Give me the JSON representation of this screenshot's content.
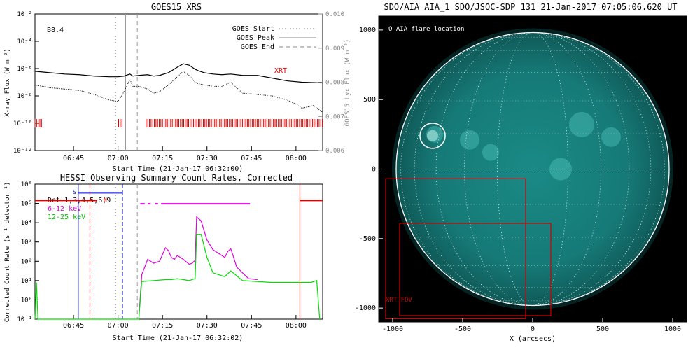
{
  "colors": {
    "goes_long": "#000000",
    "goes_short": "#000000",
    "xrt_marks": "#e00000",
    "hessi_6_12": "#e000e0",
    "hessi_12_25": "#00e000",
    "hessi_att": "#0000c0",
    "hessi_night": "#e00000",
    "hessi_other_dash": "#e000e0",
    "sun_disk": "#0f6f6f",
    "flare_circle": "#ffffff",
    "xrt_fov": "#cc0000"
  },
  "panels": {
    "goes": {
      "title": "GOES15 XRS",
      "label": "B8.4",
      "xlabel": "Start Time (21-Jan-17 06:32:00)",
      "ylabel_left": "X-ray Flux (W m⁻²)",
      "ylabel_right": "GOES15 Lyx Flux (W m⁻²)",
      "legend": [
        {
          "label": "GOES Start",
          "style": "dotted"
        },
        {
          "label": "GOES Peak",
          "style": "solid"
        },
        {
          "label": "GOES End",
          "style": "dashed"
        }
      ],
      "xrt_label": "XRT"
    },
    "hessi": {
      "title": "HESSI Observing Summary Count Rates, Corrected",
      "xlabel": "Start Time (21-Jan-17 06:32:02)",
      "ylabel": "Corrected Count Rate (s⁻¹ detector⁻¹)",
      "legend": [
        {
          "label": "Det 1,3,4,5,6,9",
          "color": "black"
        },
        {
          "label": "6-12 keV",
          "color": "magenta"
        },
        {
          "label": "12-25 keV",
          "color": "green"
        }
      ],
      "flag_s": "S",
      "flag_n": "N"
    },
    "aia": {
      "title": "SDO/AIA AIA_1 SDO/JSOC-SDP 131 21-Jan-2017 07:05:06.620 UT",
      "legend": "O AIA flare location",
      "xrt_fov": "XRT FOV",
      "xlabel": "X (arcsecs)"
    }
  },
  "chart_data": [
    {
      "type": "line",
      "title": "GOES15 XRS",
      "xlabel": "Start Time (21-Jan-17 06:32:00)",
      "ylabel": "X-ray Flux (W m^-2)",
      "x_unit": "minutes after 06:32:00",
      "xlim": [
        0,
        97
      ],
      "xticks": [
        13,
        28,
        43,
        58,
        73,
        88
      ],
      "xtick_labels": [
        "06:45",
        "07:00",
        "07:15",
        "07:30",
        "07:45",
        "08:00"
      ],
      "ylim_log10": [
        -12,
        -2
      ],
      "yticks_log10": [
        -12,
        -10,
        -8,
        -6,
        -4,
        -2
      ],
      "ytick_labels": [
        "10⁻¹²",
        "10⁻¹⁰",
        "10⁻⁸",
        "10⁻⁶",
        "10⁻⁴",
        "10⁻²"
      ],
      "y2lim": [
        0.006,
        0.01
      ],
      "y2ticks": [
        0.006,
        0.007,
        0.008,
        0.009,
        0.01
      ],
      "y2tick_labels": [
        "0.006",
        "0.007",
        "0.008",
        "0.009",
        "0.010"
      ],
      "series": [
        {
          "x": [
            0,
            5,
            10,
            15,
            20,
            25,
            28,
            30,
            32,
            33,
            35,
            38,
            40,
            42,
            45,
            48,
            50,
            52,
            54,
            55,
            57,
            60,
            63,
            66,
            70,
            75,
            80,
            85,
            90,
            97
          ],
          "y_log10": [
            -6.2,
            -6.3,
            -6.4,
            -6.45,
            -6.55,
            -6.6,
            -6.6,
            -6.55,
            -6.4,
            -6.55,
            -6.5,
            -6.45,
            -6.55,
            -6.5,
            -6.3,
            -5.9,
            -5.65,
            -5.75,
            -6.05,
            -6.15,
            -6.3,
            -6.4,
            -6.45,
            -6.4,
            -6.5,
            -6.5,
            -6.7,
            -6.9,
            -7.0,
            -7.05
          ]
        },
        {
          "x": [
            0,
            5,
            10,
            15,
            20,
            25,
            28,
            30,
            32,
            33,
            35,
            38,
            40,
            42,
            45,
            48,
            50,
            52,
            54,
            55,
            57,
            60,
            63,
            66,
            70,
            75,
            80,
            85,
            88,
            90,
            94,
            97
          ],
          "y_log10": [
            -7.2,
            -7.4,
            -7.5,
            -7.6,
            -7.9,
            -8.3,
            -8.4,
            -7.7,
            -6.8,
            -7.3,
            -7.3,
            -7.5,
            -7.8,
            -7.7,
            -7.2,
            -6.6,
            -6.2,
            -6.5,
            -7.0,
            -7.1,
            -7.2,
            -7.3,
            -7.3,
            -7.0,
            -7.8,
            -7.9,
            -8.0,
            -8.3,
            -8.6,
            -8.9,
            -8.7,
            -9.2
          ]
        }
      ],
      "markers": {
        "goes_start": 27.2,
        "goes_peak": 30.5,
        "goes_end": 34.5
      },
      "xrt_intervals": [
        [
          0,
          2.5
        ],
        [
          28.2,
          29.5
        ],
        [
          37.5,
          97
        ]
      ]
    },
    {
      "type": "line",
      "title": "HESSI Observing Summary Count Rates, Corrected",
      "xlabel": "Start Time (21-Jan-17 06:32:02)",
      "ylabel": "Corrected Count Rate (s^-1 detector^-1)",
      "x_unit": "minutes after 06:32:02",
      "xlim": [
        0,
        97
      ],
      "xticks": [
        13,
        28,
        43,
        58,
        73,
        88
      ],
      "xtick_labels": [
        "06:45",
        "07:00",
        "07:15",
        "07:30",
        "07:45",
        "08:00"
      ],
      "ylim_log10": [
        -1,
        6
      ],
      "yticks_log10": [
        -1,
        0,
        1,
        2,
        3,
        4,
        5,
        6
      ],
      "ytick_labels": [
        "10⁻¹",
        "10⁰",
        "10¹",
        "10²",
        "10³",
        "10⁴",
        "10⁵",
        "10⁶"
      ],
      "series": [
        {
          "name": "6-12 keV",
          "x": [
            35,
            36,
            38,
            40,
            42,
            44,
            45,
            46,
            47,
            48,
            50,
            52,
            53,
            54,
            54.5,
            56,
            58,
            60,
            62,
            64,
            65,
            66,
            67,
            68,
            70,
            72,
            75
          ],
          "y_log10": [
            -1,
            1.3,
            2.1,
            1.9,
            2.0,
            2.7,
            2.55,
            2.2,
            2.1,
            2.3,
            2.1,
            1.85,
            1.9,
            2.05,
            4.3,
            4.1,
            3.1,
            2.6,
            2.4,
            2.2,
            2.5,
            2.65,
            2.2,
            1.7,
            1.4,
            1.1,
            1.05
          ]
        },
        {
          "name": "12-25 keV",
          "x": [
            0,
            0.5,
            1,
            35,
            36,
            40,
            44,
            46,
            48,
            50,
            52,
            53,
            54,
            54.5,
            56,
            58,
            60,
            64,
            66,
            70,
            80,
            90,
            93,
            95,
            96
          ],
          "y_log10": [
            -1,
            0.9,
            -1,
            -1,
            0.95,
            1.0,
            1.05,
            1.05,
            1.1,
            1.05,
            1.0,
            1.05,
            1.1,
            3.4,
            3.4,
            2.2,
            1.4,
            1.2,
            1.5,
            1.0,
            0.9,
            0.9,
            0.9,
            1.0,
            -1
          ]
        }
      ],
      "markers": {
        "goes_start": 27.2,
        "goes_peak": 29.5,
        "goes_end": 34.5,
        "night_start": 18.5,
        "night_end": 89.3
      },
      "attenuator": {
        "x": [
          14.6,
          29.5
        ],
        "y_log10": 5.55
      },
      "night_bar": {
        "x": [
          0,
          21.0
        ],
        "y_log10": 5.15
      },
      "night_bar_right": {
        "x": [
          89.3,
          97
        ],
        "y_log10": 5.15
      },
      "flag_dash_x": [
        [
          35.5,
          37.0
        ],
        [
          38.0,
          39.0
        ],
        [
          40.5,
          41.5
        ],
        [
          42.5,
          72.5
        ]
      ],
      "flag_dash_y_log10": 4.98
    },
    {
      "type": "heatmap",
      "title": "SDO/AIA AIA_1 SDO/JSOC-SDP 131 21-Jan-2017 07:05:06.620 UT",
      "xlabel": "X (arcsecs)",
      "xlim": [
        -1100,
        1100
      ],
      "ylim": [
        -1100,
        1100
      ],
      "xticks": [
        -1000,
        -500,
        0,
        500,
        1000
      ],
      "yticks": [
        -1000,
        -500,
        0,
        500,
        1000
      ],
      "sun_radius_arcsec": 975,
      "flare_location": {
        "x": -715,
        "y": 240,
        "radius": 90
      },
      "xrt_fov_boxes": [
        [
          -1050,
          -1070,
          1000,
          1000
        ],
        [
          -950,
          -1050,
          1080,
          660
        ]
      ]
    }
  ]
}
